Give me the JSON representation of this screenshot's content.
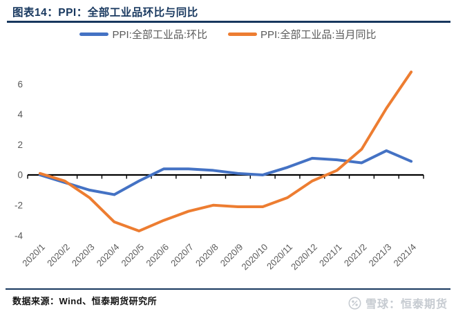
{
  "header": {
    "title": "图表14：PPI：全部工业品环比与同比"
  },
  "chart_data": {
    "type": "line",
    "title": "PPI：全部工业品环比与同比",
    "categories": [
      "2020/1",
      "2020/2",
      "2020/3",
      "2020/4",
      "2020/5",
      "2020/6",
      "2020/7",
      "2020/8",
      "2020/9",
      "2020/10",
      "2020/11",
      "2020/12",
      "2021/1",
      "2021/2",
      "2021/3",
      "2021/4"
    ],
    "series": [
      {
        "name": "PPI:全部工业品:环比",
        "color": "#4472C4",
        "values": [
          0.0,
          -0.5,
          -1.0,
          -1.3,
          -0.4,
          0.4,
          0.4,
          0.3,
          0.1,
          0.0,
          0.5,
          1.1,
          1.0,
          0.8,
          1.6,
          0.9
        ]
      },
      {
        "name": "PPI:全部工业品:当月同比",
        "color": "#ED7D31",
        "values": [
          0.1,
          -0.4,
          -1.5,
          -3.1,
          -3.7,
          -3.0,
          -2.4,
          -2.0,
          -2.1,
          -2.1,
          -1.5,
          -0.4,
          0.3,
          1.7,
          4.4,
          6.8
        ]
      }
    ],
    "yticks": [
      6,
      4,
      2,
      0,
      -2,
      -4
    ],
    "ylim": [
      -4.8,
      7.6
    ],
    "grid": false,
    "legend_position": "top",
    "xlabel": "",
    "ylabel": ""
  },
  "footer": {
    "source": "数据来源：Wind、恒泰期货研究所"
  },
  "watermark": {
    "icon": "xueqiu-logo",
    "text": "雪球：恒泰期货"
  },
  "colors": {
    "accent_navy": "#17375E",
    "axis_text": "#595959",
    "axis_line": "#000000",
    "watermark_gray": "#c6cbd1"
  }
}
